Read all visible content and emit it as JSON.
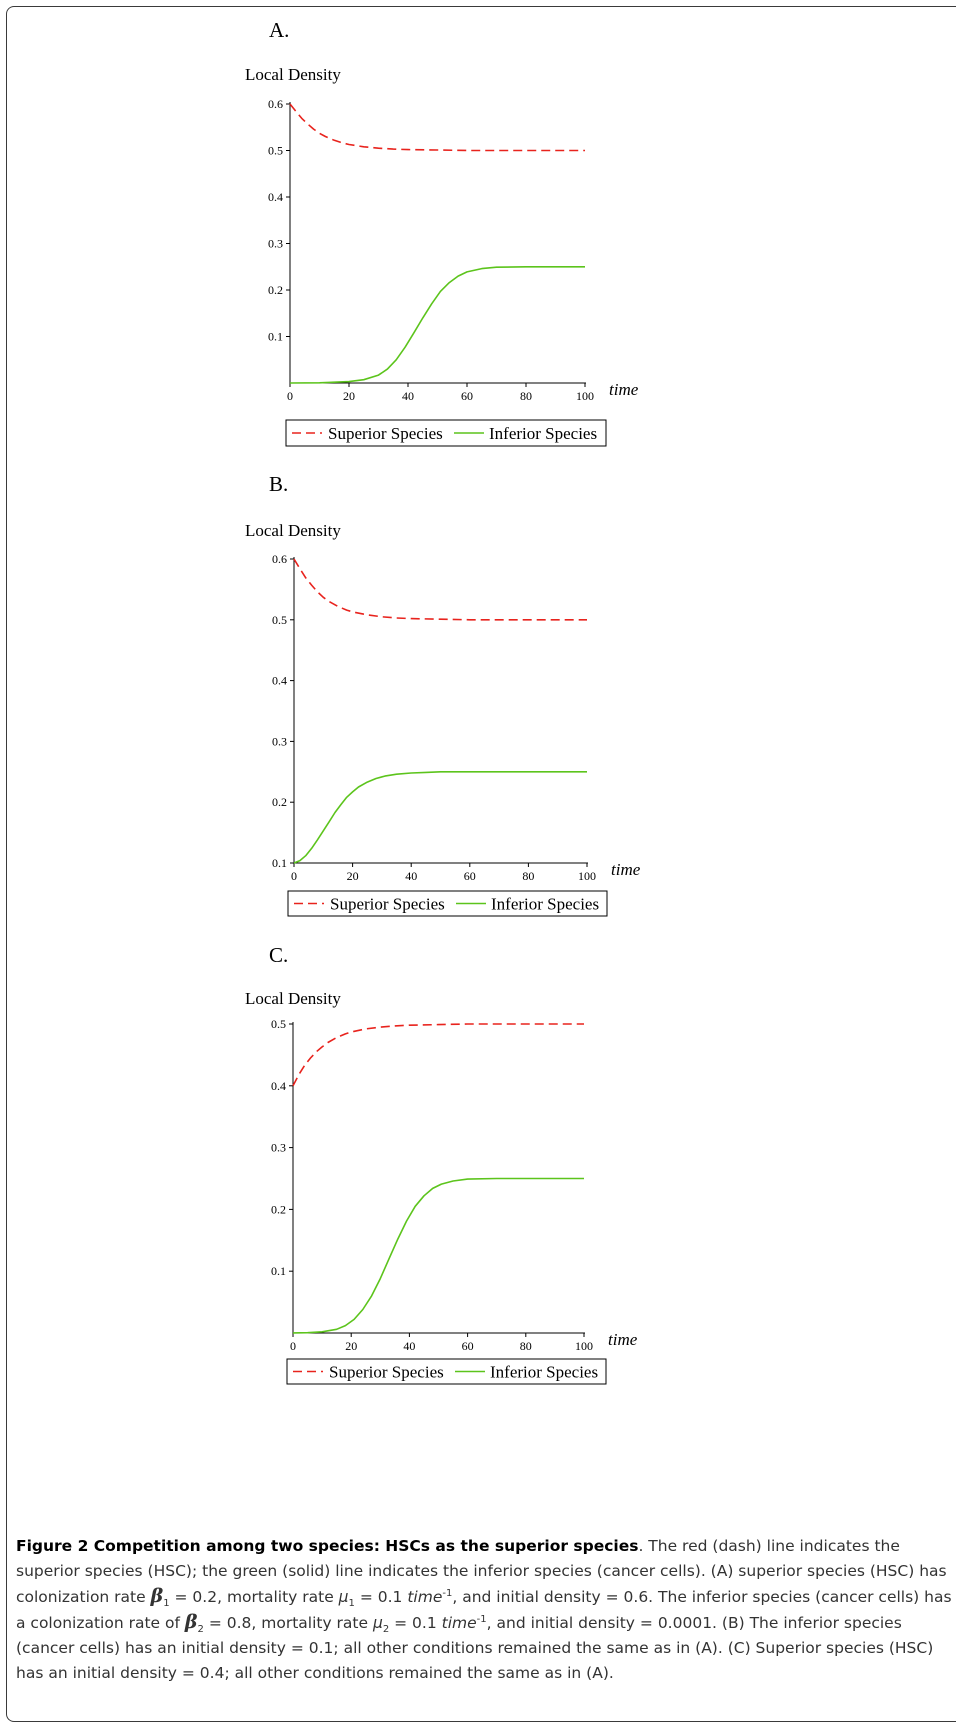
{
  "chart_data": [
    {
      "type": "line",
      "panel": "A.",
      "ylabel": "Local Density",
      "xlabel": "time",
      "xlim": [
        0,
        100
      ],
      "ylim": [
        0,
        0.6
      ],
      "x_ticks": [
        0,
        20,
        40,
        60,
        80,
        100
      ],
      "y_ticks": [
        0.1,
        0.2,
        0.3,
        0.4,
        0.5,
        0.6
      ],
      "legend": "bottom",
      "series": [
        {
          "name": "Superior Species",
          "color": "#e8231d",
          "style": "dash",
          "x": [
            0,
            2,
            4,
            6,
            8,
            10,
            12,
            15,
            18,
            20,
            25,
            30,
            35,
            40,
            50,
            60,
            70,
            80,
            90,
            100
          ],
          "y": [
            0.6,
            0.584,
            0.569,
            0.557,
            0.546,
            0.537,
            0.53,
            0.522,
            0.516,
            0.513,
            0.508,
            0.505,
            0.503,
            0.502,
            0.501,
            0.5,
            0.5,
            0.5,
            0.5,
            0.5
          ]
        },
        {
          "name": "Inferior Species",
          "color": "#5cc41c",
          "style": "solid",
          "x": [
            0,
            10,
            20,
            25,
            30,
            33,
            36,
            39,
            42,
            45,
            48,
            51,
            54,
            57,
            60,
            65,
            70,
            80,
            90,
            100
          ],
          "y": [
            0.0001,
            0.0004,
            0.003,
            0.007,
            0.017,
            0.03,
            0.05,
            0.077,
            0.108,
            0.14,
            0.17,
            0.197,
            0.216,
            0.23,
            0.239,
            0.246,
            0.249,
            0.25,
            0.25,
            0.25
          ]
        }
      ]
    },
    {
      "type": "line",
      "panel": "B.",
      "ylabel": "Local Density",
      "xlabel": "time",
      "xlim": [
        0,
        100
      ],
      "ylim": [
        0.1,
        0.6
      ],
      "x_ticks": [
        0,
        20,
        40,
        60,
        80,
        100
      ],
      "y_ticks": [
        0.1,
        0.2,
        0.3,
        0.4,
        0.5,
        0.6
      ],
      "legend": "bottom",
      "series": [
        {
          "name": "Superior Species",
          "color": "#e8231d",
          "style": "dash",
          "x": [
            0,
            2,
            4,
            6,
            8,
            10,
            12,
            15,
            18,
            20,
            25,
            30,
            35,
            40,
            50,
            60,
            70,
            80,
            90,
            100
          ],
          "y": [
            0.6,
            0.584,
            0.569,
            0.557,
            0.546,
            0.537,
            0.53,
            0.522,
            0.516,
            0.513,
            0.508,
            0.505,
            0.503,
            0.502,
            0.501,
            0.5,
            0.5,
            0.5,
            0.5,
            0.5
          ]
        },
        {
          "name": "Inferior Species",
          "color": "#5cc41c",
          "style": "solid",
          "x": [
            0,
            2,
            4,
            6,
            8,
            10,
            12,
            14,
            16,
            18,
            20,
            22,
            25,
            28,
            31,
            35,
            40,
            45,
            50,
            60,
            80,
            100
          ],
          "y": [
            0.1,
            0.104,
            0.112,
            0.124,
            0.138,
            0.153,
            0.168,
            0.183,
            0.196,
            0.208,
            0.217,
            0.225,
            0.233,
            0.239,
            0.243,
            0.246,
            0.248,
            0.249,
            0.25,
            0.25,
            0.25,
            0.25
          ]
        }
      ]
    },
    {
      "type": "line",
      "panel": "C.",
      "ylabel": "Local Density",
      "xlabel": "time",
      "xlim": [
        0,
        100
      ],
      "ylim": [
        0,
        0.5
      ],
      "x_ticks": [
        0,
        20,
        40,
        60,
        80,
        100
      ],
      "y_ticks": [
        0.1,
        0.2,
        0.3,
        0.4,
        0.5
      ],
      "legend": "bottom",
      "series": [
        {
          "name": "Superior Species",
          "color": "#e8231d",
          "style": "dash",
          "x": [
            0,
            2,
            4,
            6,
            8,
            10,
            12,
            15,
            18,
            20,
            25,
            30,
            35,
            40,
            50,
            60,
            70,
            80,
            90,
            100
          ],
          "y": [
            0.4,
            0.418,
            0.433,
            0.445,
            0.455,
            0.463,
            0.47,
            0.478,
            0.484,
            0.487,
            0.492,
            0.495,
            0.497,
            0.498,
            0.499,
            0.5,
            0.5,
            0.5,
            0.5,
            0.5
          ]
        },
        {
          "name": "Inferior Species",
          "color": "#5cc41c",
          "style": "solid",
          "x": [
            0,
            5,
            10,
            15,
            18,
            21,
            24,
            27,
            30,
            33,
            36,
            39,
            42,
            45,
            48,
            51,
            55,
            60,
            70,
            80,
            100
          ],
          "y": [
            0.0001,
            0.0005,
            0.002,
            0.006,
            0.012,
            0.022,
            0.038,
            0.06,
            0.088,
            0.12,
            0.152,
            0.181,
            0.205,
            0.222,
            0.234,
            0.241,
            0.246,
            0.249,
            0.25,
            0.25,
            0.25
          ]
        }
      ]
    }
  ],
  "caption": {
    "title": "Figure 2 Competition among two species: HSCs as the superior species",
    "text_1": ". The red (dash) line indicates the superior species (HSC); the green (solid) line indicates the inferior species (cancer cells). (A) superior species (HSC) has colonization rate ",
    "beta": "β",
    "sub_1": "1",
    "text_2": " = 0.2, mortality rate ",
    "mu": "μ",
    "text_3": " = 0.1 ",
    "time_unit": "time",
    "sup": "-1",
    "text_4": ", and initial density = 0.6. The inferior species (cancer cells) has a colonization rate of ",
    "sub_2": "2",
    "text_5": " = 0.8, mortality rate ",
    "text_6": " = 0.1 ",
    "text_7": ", and initial density = 0.0001. (B) The inferior species (cancer cells) has an initial density = 0.1; all other conditions remained the same as in (A). (C) Superior species (HSC) has an initial density = 0.4; all other conditions remained the same as in (A)."
  }
}
